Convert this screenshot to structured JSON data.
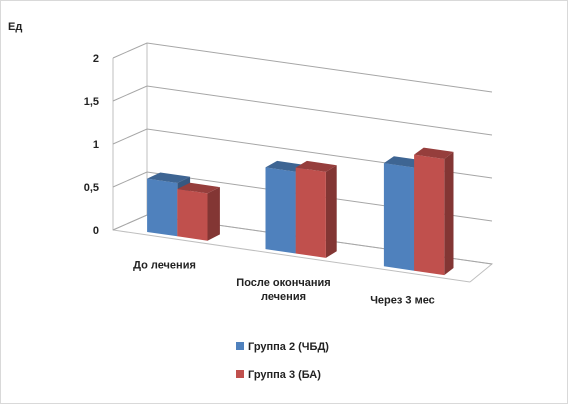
{
  "chart_data": {
    "type": "bar",
    "ylabel": "Ед",
    "ylim": [
      0,
      2
    ],
    "yticks": [
      "0",
      "0,5",
      "1",
      "1,5",
      "2"
    ],
    "categories": [
      [
        "До лечения"
      ],
      [
        "После окончания",
        "лечения"
      ],
      [
        "Через 3 мес"
      ]
    ],
    "series": [
      {
        "name": "Группа 2 (ЧБД)",
        "values": [
          0.62,
          0.95,
          1.2
        ],
        "color": "#4F81BD"
      },
      {
        "name": "Группа 3 (БА)",
        "values": [
          0.55,
          1.0,
          1.35
        ],
        "color": "#C0504D"
      }
    ],
    "grid": true,
    "legend": "bottom"
  }
}
